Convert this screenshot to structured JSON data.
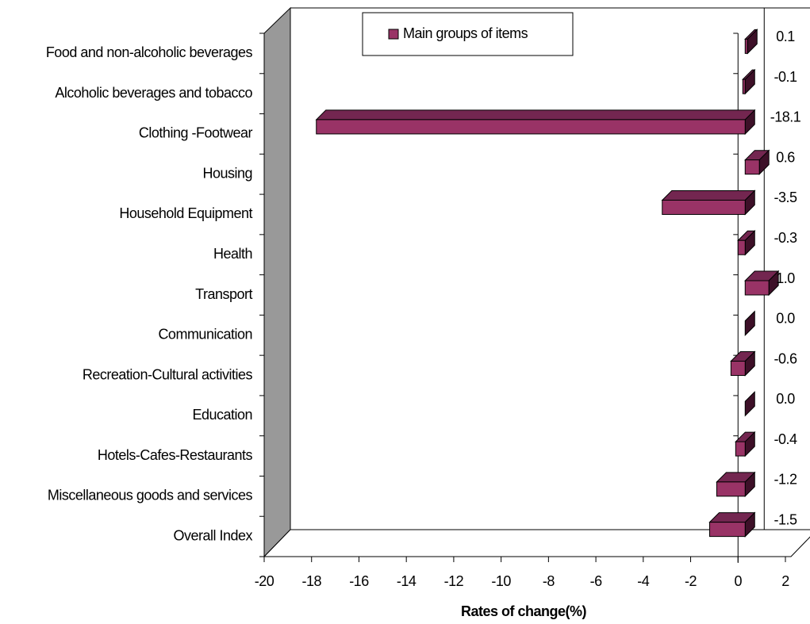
{
  "chart_data": {
    "type": "bar3d_horizontal",
    "categories": [
      "Food and non-alcoholic beverages",
      "Alcoholic beverages and tobacco",
      "Clothing -Footwear",
      "Housing",
      "Household Equipment",
      "Health",
      "Transport",
      "Communication",
      "Recreation-Cultural activities",
      "Education",
      "Hotels-Cafes-Restaurants",
      "Miscellaneous goods and services",
      "Overall Index"
    ],
    "series": [
      {
        "name": "Main groups of items",
        "color": "#993366",
        "values": [
          0.1,
          -0.1,
          -18.1,
          0.6,
          -3.5,
          -0.3,
          1.0,
          0.0,
          -0.6,
          0.0,
          -0.4,
          -1.2,
          -1.5
        ],
        "value_labels": [
          "0.1",
          "-0.1",
          "-18.1",
          "0.6",
          "-3.5",
          "-0.3",
          "1.0",
          "0.0",
          "-0.6",
          "0.0",
          "-0.4",
          "-1.2",
          "-1.5"
        ]
      }
    ],
    "x_label": "Rates of change(%)",
    "xlim": [
      -20,
      2
    ],
    "xticks": [
      -20,
      -18,
      -16,
      -14,
      -12,
      -10,
      -8,
      -6,
      -4,
      -2,
      0,
      2
    ],
    "legend": "top"
  }
}
